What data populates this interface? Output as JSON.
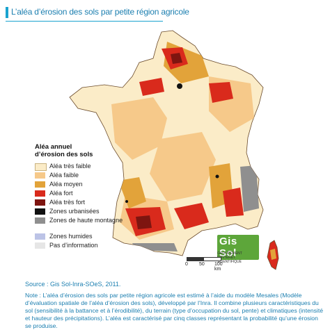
{
  "header": {
    "title": "L’aléa d’érosion des sols par petite région agricole"
  },
  "legend": {
    "title_line1": "Aléa annuel",
    "title_line2": "d’érosion des sols",
    "items": [
      {
        "label": "Aléa très faible",
        "color": "#fbecc8"
      },
      {
        "label": "Aléa faible",
        "color": "#f6c98a"
      },
      {
        "label": "Aléa moyen",
        "color": "#e2a33a"
      },
      {
        "label": "Aléa fort",
        "color": "#d92a1c"
      },
      {
        "label": "Aléa très fort",
        "color": "#7e1510"
      },
      {
        "label": "Zones urbanisées",
        "color": "#111111"
      },
      {
        "label": "Zones de haute montagne",
        "color": "#8f8f8f"
      },
      {
        "label": "Zones humides",
        "color": "#bcc3e6"
      },
      {
        "label": "Pas d’information",
        "color": "#e6e6e6"
      }
    ]
  },
  "scale": {
    "ticks": [
      "0",
      "50",
      "100 km"
    ]
  },
  "logo": {
    "name": "Gis Sol",
    "subtitle": "GROUPEMENT D’INTÉRÊT SCIENTIFIQUE"
  },
  "source": "Source : Gis Sol-Inra-SOeS, 2011.",
  "note": "Note : L’aléa d’érosion des sols par petite région agricole est estimé à l’aide du modèle Mesales (Modèle d’évaluation spatiale de l’aléa d’érosion des sols), développé par l’Inra. Il combine plusieurs caractéristiques du sol (sensibilité à la battance et à l’érodibilité), du terrain (type d’occupation du sol, pente) et climatiques (intensité et hauteur des précipitations). L’aléa est caractérisé par cinq classes représentant la probabilité qu’une érosion se produise."
}
